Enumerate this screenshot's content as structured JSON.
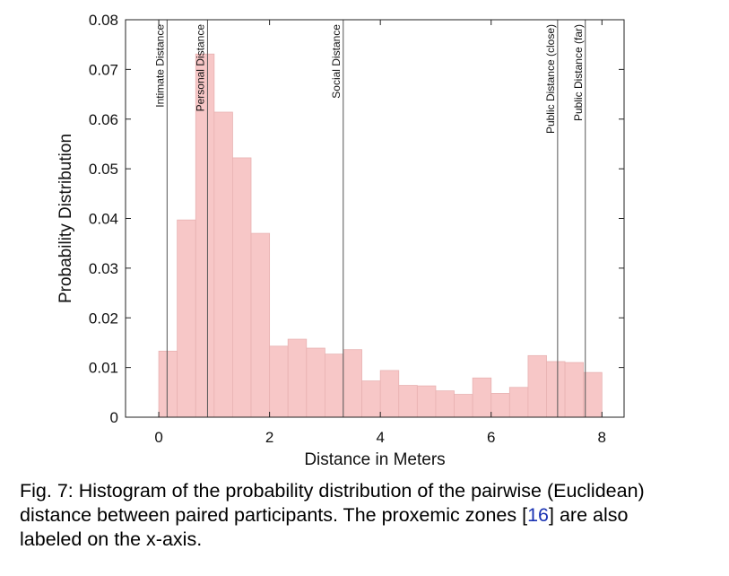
{
  "chart_data": {
    "type": "bar",
    "xlabel": "Distance in Meters",
    "ylabel": "Probability Distribution",
    "xlim": [
      -0.6,
      8.4
    ],
    "ylim": [
      0,
      0.08
    ],
    "xticks": [
      0,
      2,
      4,
      6,
      8
    ],
    "xtick_labels": [
      "0",
      "2",
      "4",
      "6",
      "8"
    ],
    "yticks": [
      0,
      0.01,
      0.02,
      0.03,
      0.04,
      0.05,
      0.06,
      0.07,
      0.08
    ],
    "ytick_labels": [
      "0",
      "0.01",
      "0.02",
      "0.03",
      "0.04",
      "0.05",
      "0.06",
      "0.07",
      "0.08"
    ],
    "bin_width": 0.333,
    "bin_starts": [
      0.0,
      0.333,
      0.667,
      1.0,
      1.333,
      1.667,
      2.0,
      2.333,
      2.667,
      3.0,
      3.333,
      3.667,
      4.0,
      4.333,
      4.667,
      5.0,
      5.333,
      5.667,
      6.0,
      6.333,
      6.667,
      7.0,
      7.333,
      7.667
    ],
    "values": [
      0.0133,
      0.0397,
      0.0731,
      0.0614,
      0.0522,
      0.037,
      0.0143,
      0.0157,
      0.0139,
      0.0127,
      0.0136,
      0.0073,
      0.0094,
      0.0064,
      0.0063,
      0.0053,
      0.0046,
      0.0079,
      0.0048,
      0.006,
      0.0124,
      0.0112,
      0.011,
      0.009
    ],
    "bar_color": "#f7c7c7",
    "bar_edge_color": "#e8b2b2",
    "zone_line_color": "#555555",
    "zones": [
      {
        "label": "Intimate Distance",
        "x": 0.15
      },
      {
        "label": "Personal Distance",
        "x": 0.88
      },
      {
        "label": "Social Distance",
        "x": 3.33
      },
      {
        "label": "Public Distance (close)",
        "x": 7.2
      },
      {
        "label": "Public Distance (far)",
        "x": 7.7
      }
    ],
    "grid": false,
    "legend": "none"
  },
  "caption": {
    "line1": "Fig. 7: Histogram of the probability distribution of the pairwise (Euclidean)",
    "line2a": "distance between paired participants. The proxemic zones [",
    "ref": "16",
    "line2b": "] are also",
    "line3": "labeled on the x-axis."
  }
}
